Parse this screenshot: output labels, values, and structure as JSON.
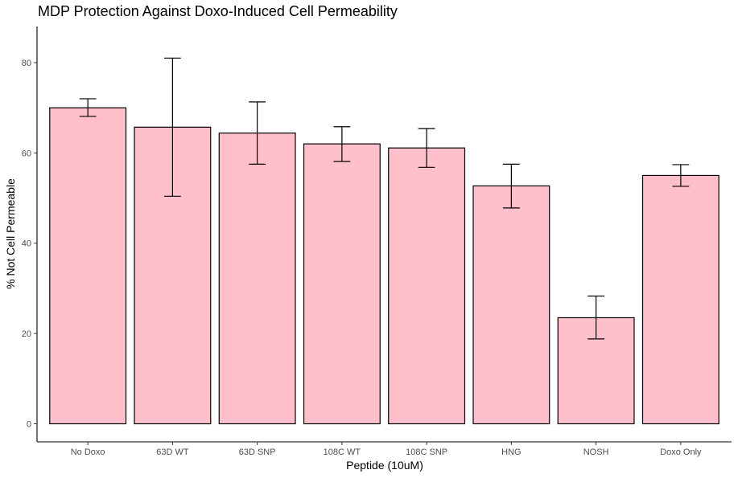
{
  "chart_data": {
    "type": "bar",
    "title": "MDP Protection Against Doxo-Induced Cell Permeability",
    "xlabel": "Peptide (10uM)",
    "ylabel": "% Not Cell Permeable",
    "categories": [
      "No Doxo",
      "63D WT",
      "63D SNP",
      "108C WT",
      "108C SNP",
      "HNG",
      "NOSH",
      "Doxo Only"
    ],
    "values": [
      70.0,
      65.7,
      64.4,
      62.0,
      61.1,
      52.7,
      23.5,
      55.0
    ],
    "error_low": [
      68.1,
      50.4,
      57.5,
      58.1,
      56.8,
      47.8,
      18.8,
      52.6
    ],
    "error_high": [
      72.0,
      81.0,
      71.3,
      65.8,
      65.4,
      57.5,
      28.3,
      57.4
    ],
    "y_ticks": [
      0,
      20,
      40,
      60,
      80
    ],
    "ylim": [
      -4,
      88
    ],
    "bar_fill": "#ffc0cb",
    "bar_stroke": "#000000",
    "grid": false
  }
}
